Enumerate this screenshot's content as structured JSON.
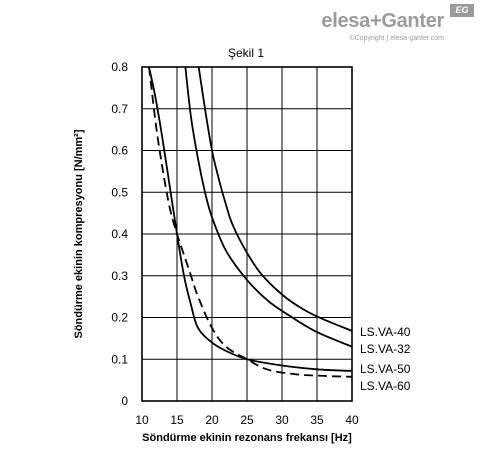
{
  "brand": {
    "name": "elesa+Ganter",
    "copyright": "©Copyright | elesa-ganter.com",
    "badge": "EG"
  },
  "chart_data": {
    "type": "line",
    "title": "Şekil 1",
    "xlabel": "Söndürme ekinin rezonans frekansı [Hz]",
    "ylabel": "Söndürme ekinin kompresyonu [N/mm²]",
    "xlim": [
      10,
      40
    ],
    "ylim": [
      0,
      0.8
    ],
    "x_ticks": [
      "10",
      "15",
      "20",
      "25",
      "30",
      "35",
      "40"
    ],
    "y_ticks": [
      "0",
      "0.1",
      "0.2",
      "0.3",
      "0.4",
      "0.5",
      "0.6",
      "0.7",
      "0.8"
    ],
    "grid": true,
    "series": [
      {
        "name": "LS.VA-40",
        "style": "solid",
        "points": [
          [
            18.1,
            0.8
          ],
          [
            19,
            0.7
          ],
          [
            20,
            0.6
          ],
          [
            21,
            0.53
          ],
          [
            22,
            0.47
          ],
          [
            23,
            0.42
          ],
          [
            25,
            0.355
          ],
          [
            27,
            0.305
          ],
          [
            30,
            0.255
          ],
          [
            33,
            0.22
          ],
          [
            36,
            0.195
          ],
          [
            40,
            0.168
          ]
        ]
      },
      {
        "name": "LS.VA-32",
        "style": "solid",
        "points": [
          [
            16.2,
            0.8
          ],
          [
            17,
            0.68
          ],
          [
            18,
            0.58
          ],
          [
            19,
            0.5
          ],
          [
            20,
            0.44
          ],
          [
            22,
            0.36
          ],
          [
            25,
            0.29
          ],
          [
            28,
            0.24
          ],
          [
            31,
            0.205
          ],
          [
            35,
            0.165
          ],
          [
            40,
            0.13
          ]
        ]
      },
      {
        "name": "LS.VA-50",
        "style": "solid",
        "points": [
          [
            11,
            0.8
          ],
          [
            12,
            0.72
          ],
          [
            13,
            0.62
          ],
          [
            14,
            0.51
          ],
          [
            15,
            0.4
          ],
          [
            16,
            0.3
          ],
          [
            17,
            0.23
          ],
          [
            18,
            0.175
          ],
          [
            20,
            0.14
          ],
          [
            22,
            0.12
          ],
          [
            25,
            0.1
          ],
          [
            30,
            0.085
          ],
          [
            35,
            0.076
          ],
          [
            40,
            0.072
          ]
        ]
      },
      {
        "name": "LS.VA-60",
        "style": "dashed",
        "points": [
          [
            11,
            0.8
          ],
          [
            12,
            0.66
          ],
          [
            13,
            0.55
          ],
          [
            14,
            0.46
          ],
          [
            15,
            0.4
          ],
          [
            16,
            0.35
          ],
          [
            17,
            0.3
          ],
          [
            18,
            0.25
          ],
          [
            20,
            0.175
          ],
          [
            22,
            0.13
          ],
          [
            25,
            0.1
          ],
          [
            28,
            0.075
          ],
          [
            32,
            0.064
          ],
          [
            36,
            0.06
          ],
          [
            40,
            0.058
          ]
        ]
      }
    ],
    "legend": [
      "LS.VA-40",
      "LS.VA-32",
      "LS.VA-50",
      "LS.VA-60"
    ]
  }
}
